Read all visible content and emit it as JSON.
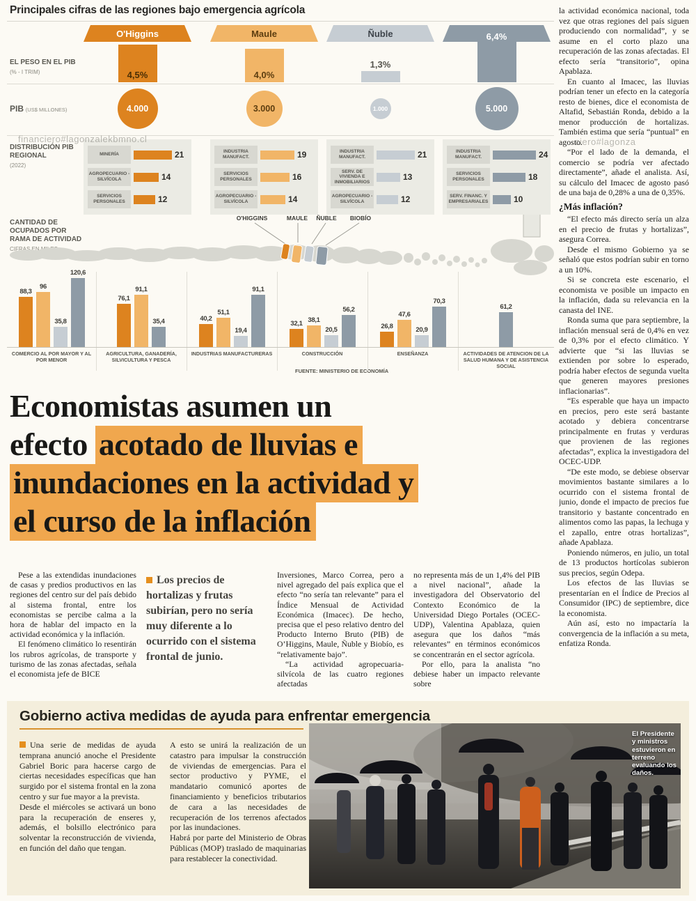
{
  "page": {
    "background": "#fcfaf4"
  },
  "watermark": {
    "left": "financiero#lagonzalekbmno.cl",
    "right": "ciero#lagonza"
  },
  "infographic": {
    "title": "Principales cifras de las regiones bajo emergencia agrícola",
    "labels": {
      "weight": "EL PESO EN EL PIB",
      "weight_sub": "(% - I TRIM)",
      "pib": "PIB",
      "pib_sub": "(US$ MILLONES)",
      "dist": "DISTRIBUCIÓN PIB REGIONAL",
      "dist_sub": "(2022)",
      "employment": "CANTIDAD DE OCUPADOS POR RAMA DE ACTIVIDAD",
      "employment_sub": "CIFRAS EN MILES"
    },
    "source": "FUENTE: MINISTERIO DE ECONOMÍA",
    "map_labels": [
      "O'HIGGINS",
      "MAULE",
      "ÑUBLE",
      "BIOBÍO"
    ],
    "regions": [
      {
        "id": "ohiggins",
        "name": "O'Higgins",
        "color": "#dd831f",
        "header_text": "#ffffff",
        "circle_text": "#ffffff",
        "weight": "4,5%",
        "weight_v": 4.5,
        "pib": "4.000",
        "dist": [
          {
            "label": "MINERÍA",
            "value": 21
          },
          {
            "label": "AGROPECUARIO -SILVÍCOLA",
            "value": 14
          },
          {
            "label": "SERVICIOS PERSONALES",
            "value": 12
          }
        ]
      },
      {
        "id": "maule",
        "name": "Maule",
        "color": "#f1b567",
        "header_text": "#5d3e10",
        "circle_text": "#5d3e10",
        "weight": "4,0%",
        "weight_v": 4.0,
        "pib": "3.000",
        "dist": [
          {
            "label": "INDUSTRIA MANUFACT.",
            "value": 19
          },
          {
            "label": "SERVICIOS PERSONALES",
            "value": 16
          },
          {
            "label": "AGROPECUARIO -SILVÍCOLA",
            "value": 14
          }
        ]
      },
      {
        "id": "nuble",
        "name": "Ñuble",
        "color": "#c6cdd3",
        "header_text": "#3f454c",
        "circle_text": "#ffffff",
        "weight": "1,3%",
        "weight_v": 1.3,
        "pib": "1.000",
        "dist": [
          {
            "label": "INDUSTRIA MANUFACT.",
            "value": 21
          },
          {
            "label": "SERV. DE VIVIENDA E INMOBILIARIOS",
            "value": 13
          },
          {
            "label": "AGROPECUARIO -SILVÍCOLA",
            "value": 12
          }
        ]
      },
      {
        "id": "biobio",
        "name": "Biobío",
        "color": "#8e9ba6",
        "header_text": "#ffffff",
        "circle_text": "#ffffff",
        "weight": "6,4%",
        "weight_v": 6.4,
        "pib": "5.000",
        "dist": [
          {
            "label": "INDUSTRIA MANUFACT.",
            "value": 24
          },
          {
            "label": "SERVICIOS PERSONALES",
            "value": 18
          },
          {
            "label": "SERV. FINANC. Y EMPRESARIALES",
            "value": 10
          }
        ]
      }
    ],
    "employment": {
      "groups": [
        {
          "label": "COMERCIO AL POR MAYOR Y AL POR MENOR",
          "bars": [
            {
              "series": "ohiggins",
              "label": "88,3",
              "value": 88.3
            },
            {
              "series": "maule",
              "label": "96",
              "value": 96
            },
            {
              "series": "nuble",
              "label": "35,8",
              "value": 35.8
            },
            {
              "series": "biobio",
              "label": "120,6",
              "value": 120.6
            }
          ]
        },
        {
          "label": "AGRICULTURA, GANADERÍA, SILVICULTURA Y PESCA",
          "bars": [
            {
              "series": "ohiggins",
              "label": "76,1",
              "value": 76.1
            },
            {
              "series": "maule",
              "label": "91,1",
              "value": 91.1
            },
            {
              "series": "biobio",
              "label": "35,4",
              "value": 35.4
            }
          ]
        },
        {
          "label": "INDUSTRIAS MANUFACTURERAS",
          "bars": [
            {
              "series": "ohiggins",
              "label": "40,2",
              "value": 40.2
            },
            {
              "series": "maule",
              "label": "51,1",
              "value": 51.1
            },
            {
              "series": "nuble",
              "label": "19,4",
              "value": 19.4
            },
            {
              "series": "biobio",
              "label": "91,1",
              "value": 91.1
            }
          ]
        },
        {
          "label": "CONSTRUCCIÓN",
          "bars": [
            {
              "series": "ohiggins",
              "label": "32,1",
              "value": 32.1
            },
            {
              "series": "maule",
              "label": "38,1",
              "value": 38.1
            },
            {
              "series": "nuble",
              "label": "20,5",
              "value": 20.5
            },
            {
              "series": "biobio",
              "label": "56,2",
              "value": 56.2
            }
          ]
        },
        {
          "label": "ENSEÑANZA",
          "bars": [
            {
              "series": "ohiggins",
              "label": "26,8",
              "value": 26.8
            },
            {
              "series": "maule",
              "label": "47,6",
              "value": 47.6
            },
            {
              "series": "nuble",
              "label": "20,9",
              "value": 20.9
            },
            {
              "series": "biobio",
              "label": "70,3",
              "value": 70.3
            }
          ]
        },
        {
          "label": "ACTIVIDADES DE ATENCION DE LA SALUD HUMANA Y DE ASISTENCIA SOCIAL",
          "bars": [
            {
              "series": "biobio",
              "label": "61,2",
              "value": 61.2
            }
          ]
        }
      ]
    }
  },
  "headline": {
    "highlight_color": "#f0a74e",
    "lines": [
      {
        "pre": "Economistas asumen un",
        "mark": ""
      },
      {
        "pre": "efecto ",
        "mark": "acotado de lluvias e"
      },
      {
        "pre": "",
        "mark": "inundaciones en la actividad y"
      },
      {
        "pre": "",
        "mark": "el curso de la inflación"
      }
    ]
  },
  "article": {
    "columns": [
      {
        "type": "text",
        "paragraphs": [
          {
            "indent": true,
            "text": "Pese a las extendidas inundaciones de casas y predios productivos en las regiones del centro sur del país debido al sistema frontal, entre los economistas se percibe calma a la hora de hablar del impacto en la actividad económica y la inflación."
          },
          {
            "indent": true,
            "text": "El fenómeno climático lo resentirán los rubros agrícolas, de transporte y turismo de las zonas afectadas, señala el economista jefe de BICE"
          }
        ]
      },
      {
        "type": "quote",
        "text": "Los precios de hortalizas y frutas subirían, pero no sería muy diferente a lo ocurrido con el sistema frontal de junio."
      },
      {
        "type": "text",
        "paragraphs": [
          {
            "indent": false,
            "text": "Inversiones, Marco Correa, pero a nivel agregado del país explica que el efecto “no sería tan relevante” para el Índice Mensual de Actividad Económica (Imacec). De hecho, precisa que el peso relativo dentro del Producto Interno Bruto (PIB) de O’Higgins, Maule, Ñuble y Biobío, es “relativamente bajo”."
          },
          {
            "indent": true,
            "text": "“La actividad agropecuaria-silvícola de las cuatro regiones afectadas"
          }
        ]
      },
      {
        "type": "text",
        "paragraphs": [
          {
            "indent": false,
            "text": "no representa más de un 1,4% del PIB a nivel nacional”, añade la investigadora del Observatorio del Contexto Económico de la Universidad Diego Portales (OCEC-UDP), Valentina Apablaza, quien asegura que los daños “más relevantes” en términos económicos se concentrarán en el sector agrícola."
          },
          {
            "indent": true,
            "text": "Por ello, para la analista “no debiese haber un impacto relevante sobre"
          }
        ]
      }
    ]
  },
  "right_column": {
    "items": [
      {
        "type": "p",
        "indent": false,
        "text": "la actividad económica nacional, toda vez que otras regiones del país siguen produciendo con normalidad”, y se asume en el corto plazo una recuperación de las zonas afectadas. El efecto sería “transitorio”, opina Apablaza."
      },
      {
        "type": "p",
        "indent": true,
        "text": "En cuanto al Imacec, las lluvias podrían tener un efecto en la categoría resto de bienes, dice el economista de Altafid, Sebastián Ronda, debido a la menor producción de hortalizas. También estima que sería “puntual” en agosto."
      },
      {
        "type": "p",
        "indent": true,
        "text": "“Por el lado de la demanda, el comercio se podría ver afectado directamente”, añade el analista. Así, su cálculo del Imacec de agosto pasó de una baja de 0,28% a una de 0,35%."
      },
      {
        "type": "h",
        "text": "¿Más inflación?"
      },
      {
        "type": "p",
        "indent": true,
        "text": "“El efecto más directo sería un alza en el precio de frutas y hortalizas”, asegura Correa."
      },
      {
        "type": "p",
        "indent": true,
        "text": "Desde el mismo Gobierno ya se señaló que estos podrían subir en torno a un 10%."
      },
      {
        "type": "p",
        "indent": true,
        "text": "Si se concreta este escenario, el economista ve posible un impacto en la inflación, dada su relevancia en la canasta del INE."
      },
      {
        "type": "p",
        "indent": true,
        "text": "Ronda suma que para septiembre, la inflación mensual será de 0,4% en vez de 0,3% por el efecto climático. Y advierte que “si las lluvias se extienden por sobre lo esperado, podría haber efectos de segunda vuelta que generen mayores presiones inflacionarias”."
      },
      {
        "type": "p",
        "indent": true,
        "text": "“Es esperable que haya un impacto en precios, pero este será bastante acotado y debiera concentrarse principalmente en frutas y verduras que provienen de las regiones afectadas”, explica la investigadora del OCEC-UDP."
      },
      {
        "type": "p",
        "indent": true,
        "text": "“De este modo, se debiese observar movimientos bastante similares a lo ocurrido con el sistema frontal de junio, donde el impacto de precios fue transitorio y bastante concentrado en alimentos como las papas, la lechuga y el zapallo, entre otras hortalizas”, añade Apablaza."
      },
      {
        "type": "p",
        "indent": true,
        "text": "Poniendo números, en julio, un total de 13 productos hortícolas subieron sus precios, según Odepa."
      },
      {
        "type": "p",
        "indent": true,
        "text": "Los efectos de las lluvias se presentarían en el Índice de Precios al Consumidor (IPC) de septiembre, dice la economista."
      },
      {
        "type": "p",
        "indent": true,
        "text": "Aún así, esto no impactaría la convergencia de la inflación a su meta, enfatiza Ronda."
      }
    ]
  },
  "aid_box": {
    "title": "Gobierno activa medidas de ayuda para enfrentar emergencia",
    "columns": [
      {
        "paragraphs": [
          {
            "bullet": true,
            "text": "Una serie de medidas de ayuda temprana anunció anoche el Presidente Gabriel Boric para hacerse cargo de ciertas necesidades específicas que han surgido por el sistema frontal en la zona centro y sur fue mayor a la prevista."
          },
          {
            "text": "Desde el miércoles se activará un bono para la recuperación de enseres y, además, el bolsillo electrónico para solventar la reconstrucción de vivienda, en función del daño que tengan."
          }
        ]
      },
      {
        "paragraphs": [
          {
            "text": "A esto se unirá la realización de un catastro para impulsar la construcción de viviendas de emergencias. Para el sector productivo y PYME, el mandatario comunicó aportes de financiamiento y beneficios tributarios de cara a las necesidades de recuperación de los terrenos afectados por las inundaciones."
          },
          {
            "text": "Habrá por parte del Ministerio de Obras Públicas (MOP) traslado de maquinarias para restablecer la conectividad."
          }
        ]
      }
    ],
    "photo_caption": "El Presidente y ministros estuvieron en terreno evaluando los daños."
  },
  "chart_data": [
    {
      "type": "bar",
      "title": "EL PESO EN EL PIB (% - I TRIM)",
      "categories": [
        "O'Higgins",
        "Maule",
        "Ñuble",
        "Biobío"
      ],
      "values": [
        4.5,
        4.0,
        1.3,
        6.4
      ],
      "unit": "%"
    },
    {
      "type": "bar",
      "title": "PIB (US$ MILLONES)",
      "categories": [
        "O'Higgins",
        "Maule",
        "Ñuble",
        "Biobío"
      ],
      "values": [
        4000,
        3000,
        1000,
        5000
      ]
    },
    {
      "type": "bar",
      "title": "DISTRIBUCIÓN PIB REGIONAL (2022)",
      "groups": [
        {
          "region": "O'Higgins",
          "items": [
            [
              "MINERÍA",
              21
            ],
            [
              "AGROPECUARIO-SILVÍCOLA",
              14
            ],
            [
              "SERVICIOS PERSONALES",
              12
            ]
          ]
        },
        {
          "region": "Maule",
          "items": [
            [
              "INDUSTRIA MANUFACT.",
              19
            ],
            [
              "SERVICIOS PERSONALES",
              16
            ],
            [
              "AGROPECUARIO-SILVÍCOLA",
              14
            ]
          ]
        },
        {
          "region": "Ñuble",
          "items": [
            [
              "INDUSTRIA MANUFACT.",
              21
            ],
            [
              "SERV. DE VIVIENDA E INMOBILIARIOS",
              13
            ],
            [
              "AGROPECUARIO-SILVÍCOLA",
              12
            ]
          ]
        },
        {
          "region": "Biobío",
          "items": [
            [
              "INDUSTRIA MANUFACT.",
              24
            ],
            [
              "SERVICIOS PERSONALES",
              18
            ],
            [
              "SERV. FINANC. Y EMPRESARIALES",
              10
            ]
          ]
        }
      ]
    },
    {
      "type": "bar",
      "title": "CANTIDAD DE OCUPADOS POR RAMA DE ACTIVIDAD (CIFRAS EN MILES)",
      "categories": [
        "COMERCIO AL POR MAYOR Y AL POR MENOR",
        "AGRICULTURA, GANADERÍA, SILVICULTURA Y PESCA",
        "INDUSTRIAS MANUFACTURERAS",
        "CONSTRUCCIÓN",
        "ENSEÑANZA",
        "ACTIVIDADES DE ATENCION DE LA SALUD HUMANA Y DE ASISTENCIA SOCIAL"
      ],
      "series": [
        {
          "name": "O'Higgins",
          "values": [
            88.3,
            76.1,
            40.2,
            32.1,
            26.8,
            null
          ]
        },
        {
          "name": "Maule",
          "values": [
            96,
            91.1,
            51.1,
            38.1,
            47.6,
            null
          ]
        },
        {
          "name": "Ñuble",
          "values": [
            35.8,
            null,
            19.4,
            20.5,
            20.9,
            null
          ]
        },
        {
          "name": "Biobío",
          "values": [
            120.6,
            35.4,
            91.1,
            56.2,
            70.3,
            61.2
          ]
        }
      ],
      "source": "FUENTE: MINISTERIO DE ECONOMÍA"
    }
  ]
}
